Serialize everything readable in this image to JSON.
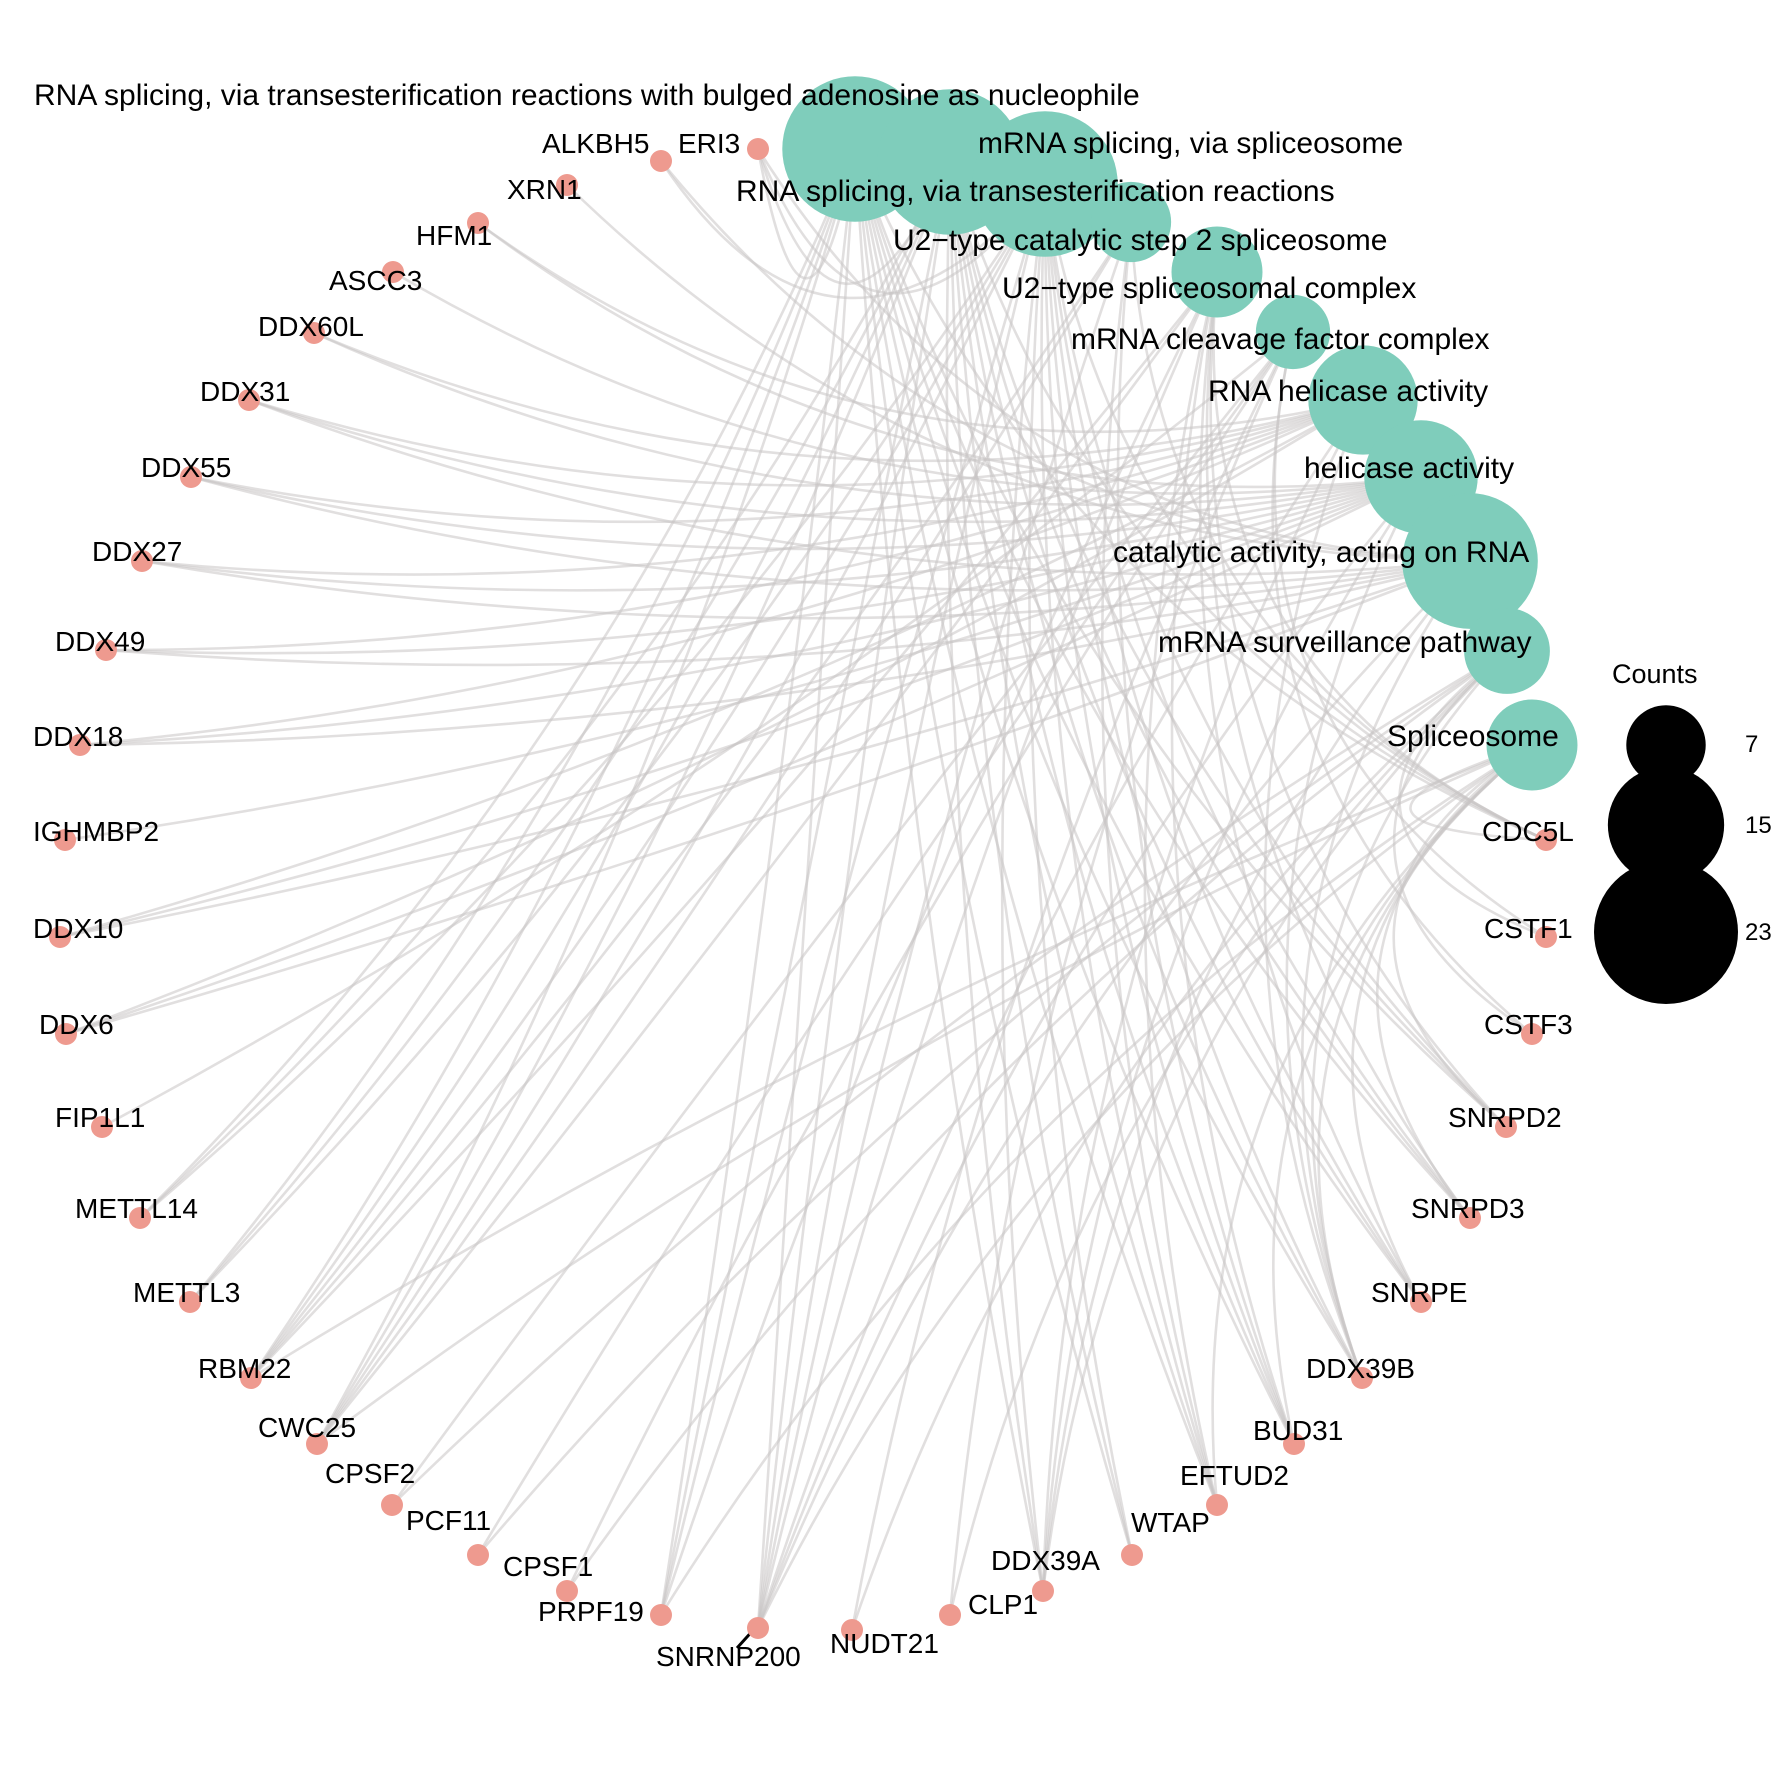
{
  "network": {
    "terms": [
      {
        "name": "RNA splicing, via transesterification reactions with bulged adenosine as nucleophile",
        "count": 23
      },
      {
        "name": "mRNA splicing, via spliceosome",
        "count": 23
      },
      {
        "name": "RNA splicing, via transesterification reactions",
        "count": 23
      },
      {
        "name": "U2−type catalytic step 2 spliceosome",
        "count": 7
      },
      {
        "name": "U2−type spliceosomal complex",
        "count": 9
      },
      {
        "name": "mRNA cleavage factor complex",
        "count": 6
      },
      {
        "name": "RNA helicase activity",
        "count": 13
      },
      {
        "name": "helicase activity",
        "count": 14
      },
      {
        "name": "catalytic activity, acting on RNA",
        "count": 20
      },
      {
        "name": "mRNA surveillance pathway",
        "count": 8
      },
      {
        "name": "Spliceosome",
        "count": 9
      }
    ],
    "genes": [
      "ERI3",
      "ALKBH5",
      "XRN1",
      "HFM1",
      "ASCC3",
      "DDX60L",
      "DDX31",
      "DDX55",
      "DDX27",
      "DDX49",
      "DDX18",
      "IGHMBP2",
      "DDX10",
      "DDX6",
      "FIP1L1",
      "METTL14",
      "METTL3",
      "RBM22",
      "CWC25",
      "CPSF2",
      "PCF11",
      "CPSF1",
      "PRPF19",
      "SNRNP200",
      "NUDT21",
      "CLP1",
      "DDX39A",
      "WTAP",
      "EFTUD2",
      "BUD31",
      "DDX39B",
      "SNRPE",
      "SNRPD3",
      "SNRPD2",
      "CSTF3",
      "CSTF1",
      "CDC5L"
    ],
    "colors": {
      "term": "#7fcdbb",
      "gene": "#ee9a8f",
      "edge": "#c8c4c4"
    }
  },
  "legend": {
    "title": "Counts",
    "items": [
      {
        "label": "7",
        "value": 7
      },
      {
        "label": "15",
        "value": 15
      },
      {
        "label": "23",
        "value": 23
      }
    ]
  }
}
